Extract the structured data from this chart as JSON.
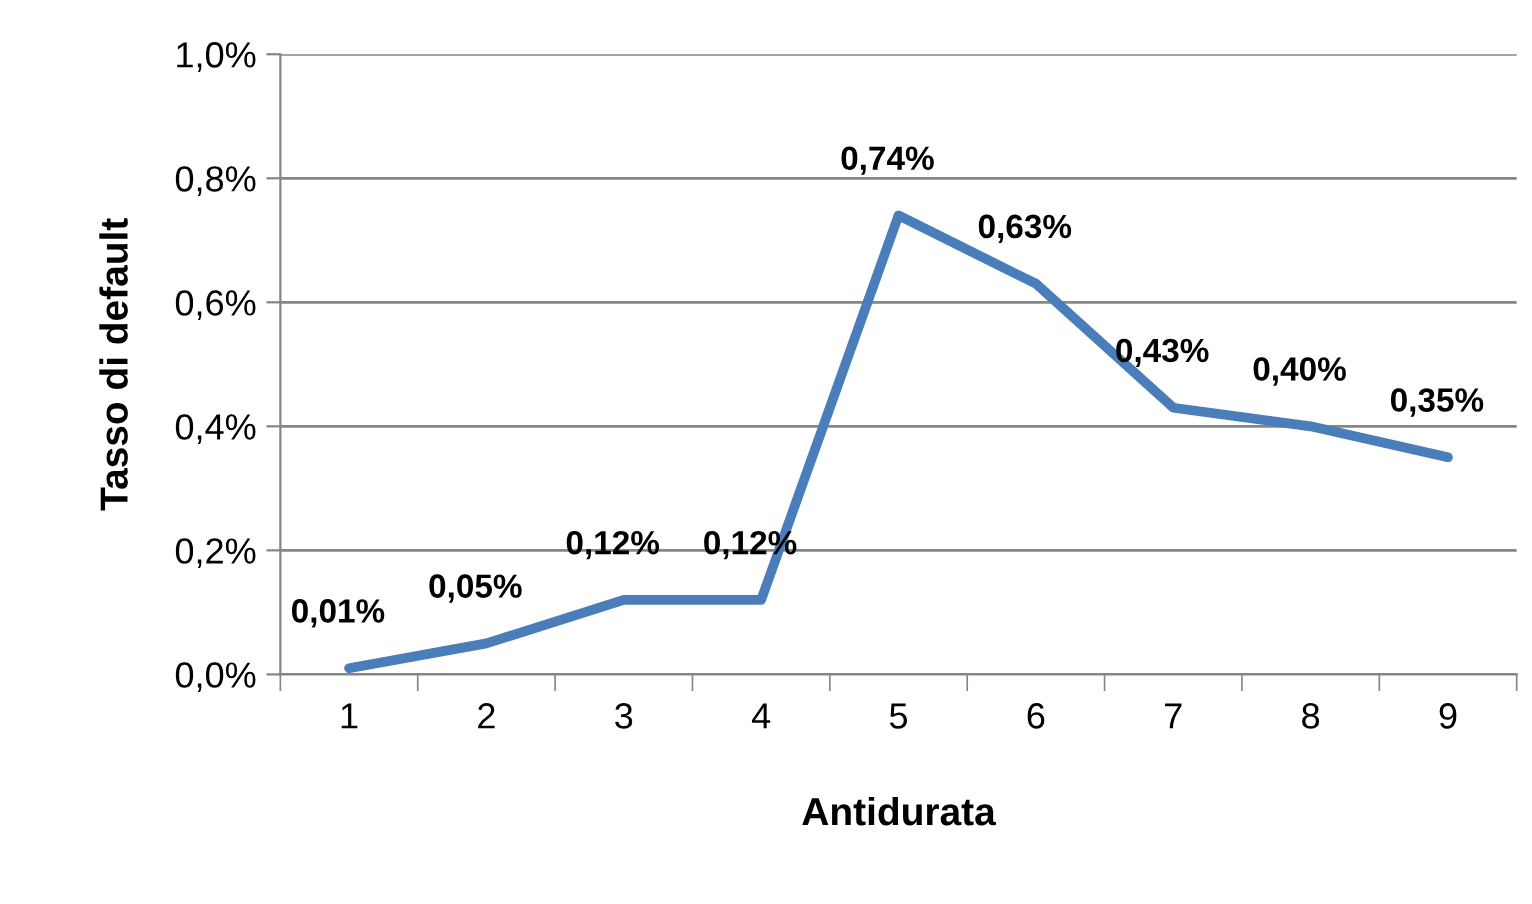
{
  "chart_data": {
    "type": "line",
    "xlabel": "Antidurata",
    "ylabel": "Tasso di default",
    "categories": [
      "1",
      "2",
      "3",
      "4",
      "5",
      "6",
      "7",
      "8",
      "9"
    ],
    "values": [
      0.01,
      0.05,
      0.12,
      0.12,
      0.74,
      0.63,
      0.43,
      0.4,
      0.35
    ],
    "value_labels": [
      "0,01%",
      "0,05%",
      "0,12%",
      "0,12%",
      "0,74%",
      "0,63%",
      "0,43%",
      "0,40%",
      "0,35%"
    ],
    "color": "#4a7ebb",
    "ylim": [
      0,
      1.0
    ],
    "yticks": [
      {
        "value": 0,
        "label": "0,0%"
      },
      {
        "value": 0.2,
        "label": "0,2%"
      },
      {
        "value": 0.4,
        "label": "0,4%"
      },
      {
        "value": 0.6,
        "label": "0,6%"
      },
      {
        "value": 0.8,
        "label": "0,8%"
      },
      {
        "value": 1.0,
        "label": "1,0%"
      }
    ],
    "grid": "y"
  }
}
